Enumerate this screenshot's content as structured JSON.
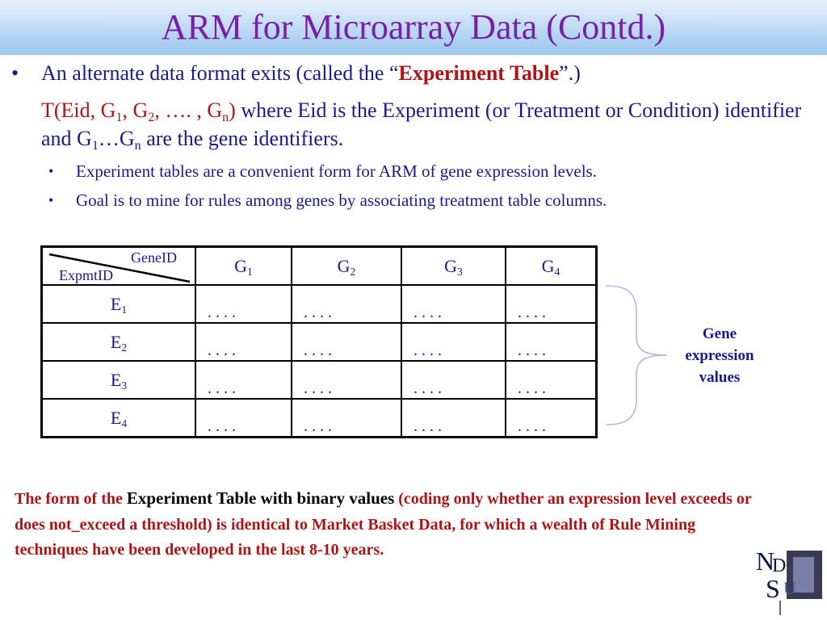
{
  "title": "ARM for Microarray Data (Contd.)",
  "bullet1": {
    "pre": "An alternate data format exits (called the “",
    "emph": "Experiment Table",
    "post": "”.)"
  },
  "continuation": {
    "formula_t": "T(Eid, G",
    "formula_sub1": "1",
    "formula_g2": ", G",
    "formula_sub2": "2",
    "formula_mid": ", …. , G",
    "formula_subn": "n",
    "formula_close": ")",
    "text_a": " where Eid is the Experiment (or Treatment or Condition) identifier and G",
    "text_sub1": "1",
    "text_mid": "…G",
    "text_subn": "n",
    "text_end": " are the gene identifiers."
  },
  "sub_bullets": [
    "Experiment tables are a convenient form for ARM of gene expression levels.",
    "Goal is to mine for rules among genes by associating treatment table columns."
  ],
  "table": {
    "corner_top": "GeneID",
    "corner_bottom": "ExpmtID",
    "columns": [
      {
        "base": "G",
        "sub": "1"
      },
      {
        "base": "G",
        "sub": "2"
      },
      {
        "base": "G",
        "sub": "3"
      },
      {
        "base": "G",
        "sub": "4"
      }
    ],
    "rows": [
      {
        "base": "E",
        "sub": "1",
        "cells": [
          ". . . .",
          ". . . .",
          ". . . .",
          ". . . ."
        ]
      },
      {
        "base": "E",
        "sub": "2",
        "cells": [
          ". . . .",
          ". . . .",
          ". . . .",
          ". . . ."
        ]
      },
      {
        "base": "E",
        "sub": "3",
        "cells": [
          ". . . .",
          ". . . .",
          ". . . .",
          ". . . ."
        ]
      },
      {
        "base": "E",
        "sub": "4",
        "cells": [
          ". . . .",
          ". . . .",
          ". . . .",
          ". . . ."
        ]
      }
    ]
  },
  "gene_label": [
    "Gene",
    "expression",
    "values"
  ],
  "note": {
    "red1": "The form of the ",
    "black": "Experiment Table with binary values",
    "red2": " (coding only whether an expression level exceeds or does not_exceed a threshold) is identical to Market Basket Data, for which a wealth of Rule Mining techniques have been developed in the last 8-10 years."
  },
  "logo_letters": [
    "N",
    "D",
    "S",
    "U"
  ],
  "colors": {
    "title": "#7a1fa8",
    "body": "#1a1a8c",
    "accent_red": "#b01313",
    "title_bar": "#bcd9f3"
  }
}
